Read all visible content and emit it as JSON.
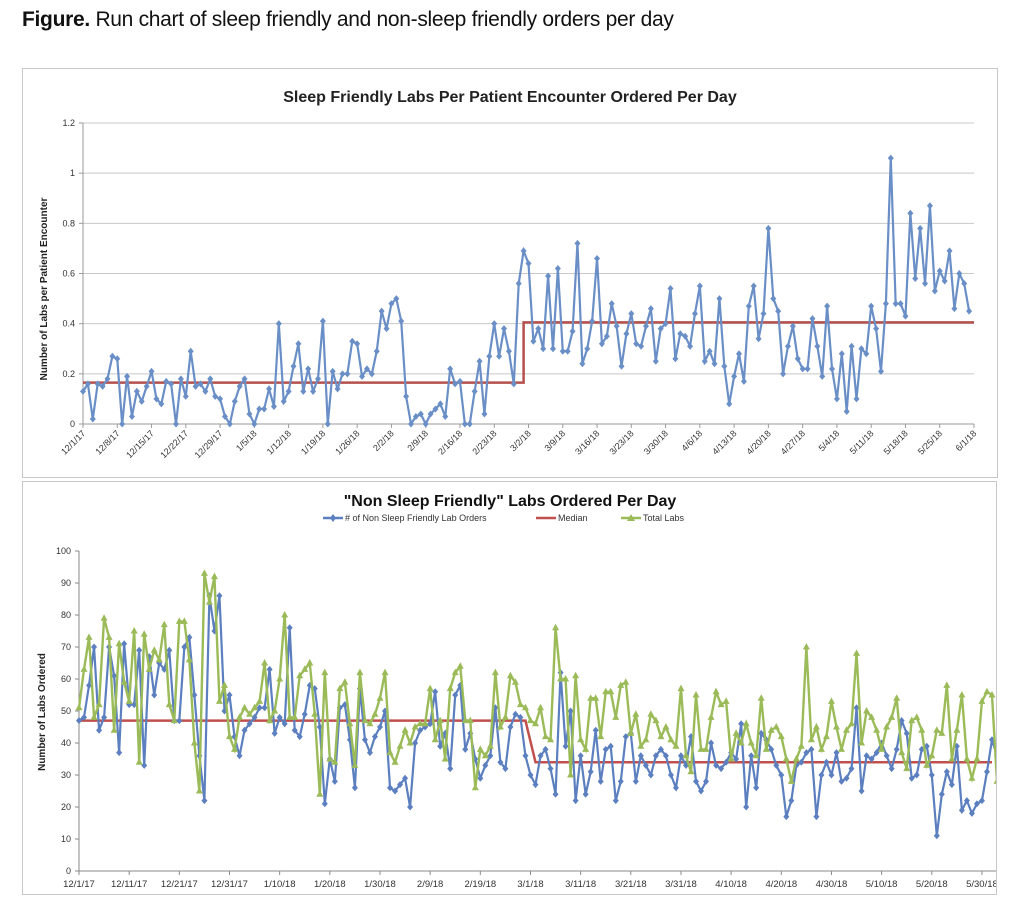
{
  "caption": {
    "bold": "Figure.",
    "text": " Run chart of sleep friendly and non-sleep friendly orders per day"
  },
  "chart_data": [
    {
      "type": "line",
      "title": "Sleep Friendly Labs Per Patient Encounter Ordered Per Day",
      "xlabel": "",
      "ylabel": "Number of Labs per Patient Encounter",
      "ylim": [
        0,
        1.2
      ],
      "yticks": [
        "0",
        "0.2",
        "0.4",
        "0.6",
        "0.8",
        "1",
        "1.2"
      ],
      "ytick_values": [
        0,
        0.2,
        0.4,
        0.6,
        0.8,
        1.0,
        1.2
      ],
      "grid": true,
      "x_start": "12/1/17",
      "x_days": 183,
      "xtick_labels": [
        "12/1/17",
        "12/8/17",
        "12/15/17",
        "12/22/17",
        "12/29/17",
        "1/5/18",
        "1/12/18",
        "1/19/18",
        "1/26/18",
        "2/2/18",
        "2/9/18",
        "2/16/18",
        "2/23/18",
        "3/2/18",
        "3/9/18",
        "3/16/18",
        "3/23/18",
        "3/30/18",
        "4/6/18",
        "4/13/18",
        "4/20/18",
        "4/27/18",
        "5/4/18",
        "5/11/18",
        "5/18/18",
        "5/25/18",
        "6/1/18"
      ],
      "xtick_interval_days": 7,
      "series": [
        {
          "name": "Sleep friendly labs per patient encounter",
          "color": "#6a8fc7",
          "marker": "diamond",
          "values": [
            0.13,
            0.16,
            0.02,
            0.16,
            0.15,
            0.18,
            0.27,
            0.26,
            0.0,
            0.19,
            0.03,
            0.13,
            0.09,
            0.15,
            0.21,
            0.1,
            0.08,
            0.17,
            0.16,
            0.0,
            0.18,
            0.11,
            0.29,
            0.15,
            0.16,
            0.13,
            0.18,
            0.11,
            0.1,
            0.03,
            0.0,
            0.09,
            0.15,
            0.18,
            0.04,
            0.0,
            0.06,
            0.06,
            0.14,
            0.07,
            0.4,
            0.09,
            0.13,
            0.23,
            0.32,
            0.13,
            0.22,
            0.13,
            0.18,
            0.41,
            0.0,
            0.21,
            0.14,
            0.2,
            0.2,
            0.33,
            0.32,
            0.19,
            0.22,
            0.2,
            0.29,
            0.45,
            0.38,
            0.48,
            0.5,
            0.41,
            0.11,
            0.0,
            0.03,
            0.04,
            0.0,
            0.04,
            0.06,
            0.08,
            0.03,
            0.22,
            0.16,
            0.17,
            0.0,
            0.0,
            0.13,
            0.25,
            0.04,
            0.27,
            0.4,
            0.27,
            0.38,
            0.29,
            0.16,
            0.56,
            0.69,
            0.64,
            0.33,
            0.38,
            0.3,
            0.59,
            0.3,
            0.62,
            0.29,
            0.29,
            0.37,
            0.72,
            0.24,
            0.3,
            0.41,
            0.66,
            0.32,
            0.35,
            0.48,
            0.39,
            0.23,
            0.36,
            0.44,
            0.32,
            0.31,
            0.39,
            0.46,
            0.25,
            0.38,
            0.4,
            0.54,
            0.26,
            0.36,
            0.35,
            0.31,
            0.44,
            0.55,
            0.25,
            0.29,
            0.24,
            0.5,
            0.23,
            0.08,
            0.19,
            0.28,
            0.17,
            0.47,
            0.55,
            0.34,
            0.44,
            0.78,
            0.5,
            0.45,
            0.2,
            0.31,
            0.39,
            0.26,
            0.22,
            0.22,
            0.42,
            0.31,
            0.19,
            0.47,
            0.22,
            0.1,
            0.28,
            0.05,
            0.31,
            0.1,
            0.3,
            0.28,
            0.47,
            0.38,
            0.21,
            0.48,
            1.06,
            0.48,
            0.48,
            0.43,
            0.84,
            0.58,
            0.78,
            0.56,
            0.87,
            0.53,
            0.61,
            0.57,
            0.69,
            0.46,
            0.6,
            0.56,
            0.45
          ]
        },
        {
          "name": "Median",
          "color": "#b5504c",
          "marker": "none",
          "segments": [
            {
              "from": "12/1/17",
              "to": "3/1/18",
              "value": 0.165
            },
            {
              "from": "3/1/18",
              "to": "6/1/18",
              "value": 0.405
            }
          ]
        }
      ]
    },
    {
      "type": "line",
      "title": "\"Non Sleep Friendly\" Labs Ordered Per Day",
      "xlabel": "",
      "ylabel": "Number of Labs Ordered",
      "ylim": [
        0,
        100
      ],
      "yticks": [
        "0",
        "10",
        "20",
        "30",
        "40",
        "50",
        "60",
        "70",
        "80",
        "90",
        "100"
      ],
      "ytick_values": [
        0,
        10,
        20,
        30,
        40,
        50,
        60,
        70,
        80,
        90,
        100
      ],
      "grid": false,
      "legend": {
        "position": "top-center",
        "entries": [
          "# of Non Sleep Friendly Lab Orders",
          "Median",
          "Total Labs"
        ]
      },
      "x_start": "12/1/17",
      "xtick_labels": [
        "12/1/17",
        "12/11/17",
        "12/21/17",
        "12/31/17",
        "1/10/18",
        "1/20/18",
        "1/30/18",
        "2/9/18",
        "2/19/18",
        "3/1/18",
        "3/11/18",
        "3/21/18",
        "3/31/18",
        "4/10/18",
        "4/20/18",
        "4/30/18",
        "5/10/18",
        "5/20/18",
        "5/30/18"
      ],
      "xtick_interval_days": 10,
      "series": [
        {
          "name": "# of Non Sleep Friendly Lab Orders",
          "color": "#5b7fbf",
          "marker": "diamond",
          "values": [
            47,
            48,
            58,
            70,
            44,
            48,
            70,
            61,
            37,
            71,
            52,
            52,
            69,
            33,
            67,
            55,
            65,
            63,
            69,
            47,
            47,
            70,
            73,
            55,
            36,
            22,
            86,
            75,
            86,
            50,
            55,
            42,
            36,
            44,
            46,
            48,
            51,
            51,
            63,
            43,
            48,
            46,
            76,
            44,
            42,
            49,
            58,
            57,
            45,
            21,
            35,
            28,
            51,
            52,
            41,
            26,
            57,
            41,
            37,
            42,
            45,
            50,
            26,
            25,
            27,
            29,
            20,
            40,
            44,
            45,
            46,
            56,
            39,
            43,
            32,
            55,
            58,
            38,
            43,
            35,
            29,
            33,
            36,
            51,
            34,
            32,
            45,
            49,
            48,
            36,
            30,
            27,
            36,
            38,
            32,
            24,
            62,
            39,
            50,
            22,
            36,
            24,
            31,
            44,
            28,
            38,
            39,
            22,
            28,
            42,
            43,
            28,
            36,
            33,
            30,
            36,
            38,
            36,
            30,
            26,
            36,
            33,
            42,
            28,
            25,
            28,
            40,
            33,
            32,
            34,
            37,
            35,
            46,
            20,
            36,
            26,
            43,
            41,
            38,
            33,
            30,
            17,
            22,
            33,
            34,
            37,
            38,
            17,
            30,
            34,
            30,
            37,
            28,
            29,
            32,
            51,
            25,
            36,
            35,
            37,
            40,
            36,
            32,
            38,
            47,
            43,
            29,
            30,
            38,
            39,
            30,
            11,
            24,
            31,
            27,
            39,
            19,
            22,
            18,
            21,
            22,
            31,
            41,
            36,
            18,
            21
          ]
        },
        {
          "name": "Median",
          "color": "#c0504d",
          "marker": "none",
          "segments": [
            {
              "from": "12/1/17",
              "to": "2/28/18",
              "value": 47
            },
            {
              "from": "3/2/18",
              "to": "6/1/18",
              "value": 34
            }
          ]
        },
        {
          "name": "Total Labs",
          "color": "#9bbb59",
          "marker": "triangle",
          "values": [
            51,
            63,
            73,
            48,
            52,
            79,
            73,
            44,
            71,
            59,
            53,
            75,
            34,
            74,
            63,
            69,
            66,
            77,
            52,
            47,
            78,
            78,
            66,
            40,
            25,
            93,
            84,
            92,
            53,
            58,
            42,
            38,
            48,
            51,
            49,
            51,
            53,
            65,
            47,
            50,
            60,
            80,
            48,
            48,
            61,
            63,
            65,
            49,
            24,
            62,
            35,
            34,
            57,
            59,
            46,
            33,
            62,
            47,
            46,
            49,
            54,
            62,
            37,
            34,
            39,
            44,
            40,
            45,
            46,
            46,
            57,
            41,
            47,
            35,
            57,
            62,
            64,
            47,
            47,
            26,
            38,
            36,
            39,
            62,
            45,
            48,
            61,
            59,
            52,
            51,
            47,
            46,
            51,
            42,
            41,
            76,
            60,
            60,
            30,
            61,
            41,
            38,
            54,
            54,
            42,
            56,
            56,
            48,
            58,
            59,
            43,
            49,
            39,
            41,
            49,
            47,
            42,
            45,
            41,
            39,
            57,
            36,
            31,
            55,
            38,
            38,
            48,
            56,
            52,
            53,
            35,
            43,
            40,
            46,
            40,
            36,
            54,
            38,
            44,
            45,
            42,
            35,
            28,
            35,
            39,
            70,
            41,
            45,
            38,
            42,
            53,
            45,
            38,
            44,
            46,
            68,
            40,
            50,
            48,
            44,
            38,
            45,
            48,
            54,
            37,
            32,
            47,
            48,
            44,
            33,
            36,
            44,
            43,
            58,
            35,
            44,
            55,
            35,
            29,
            35,
            53,
            56,
            55,
            28,
            29
          ]
        }
      ]
    }
  ]
}
